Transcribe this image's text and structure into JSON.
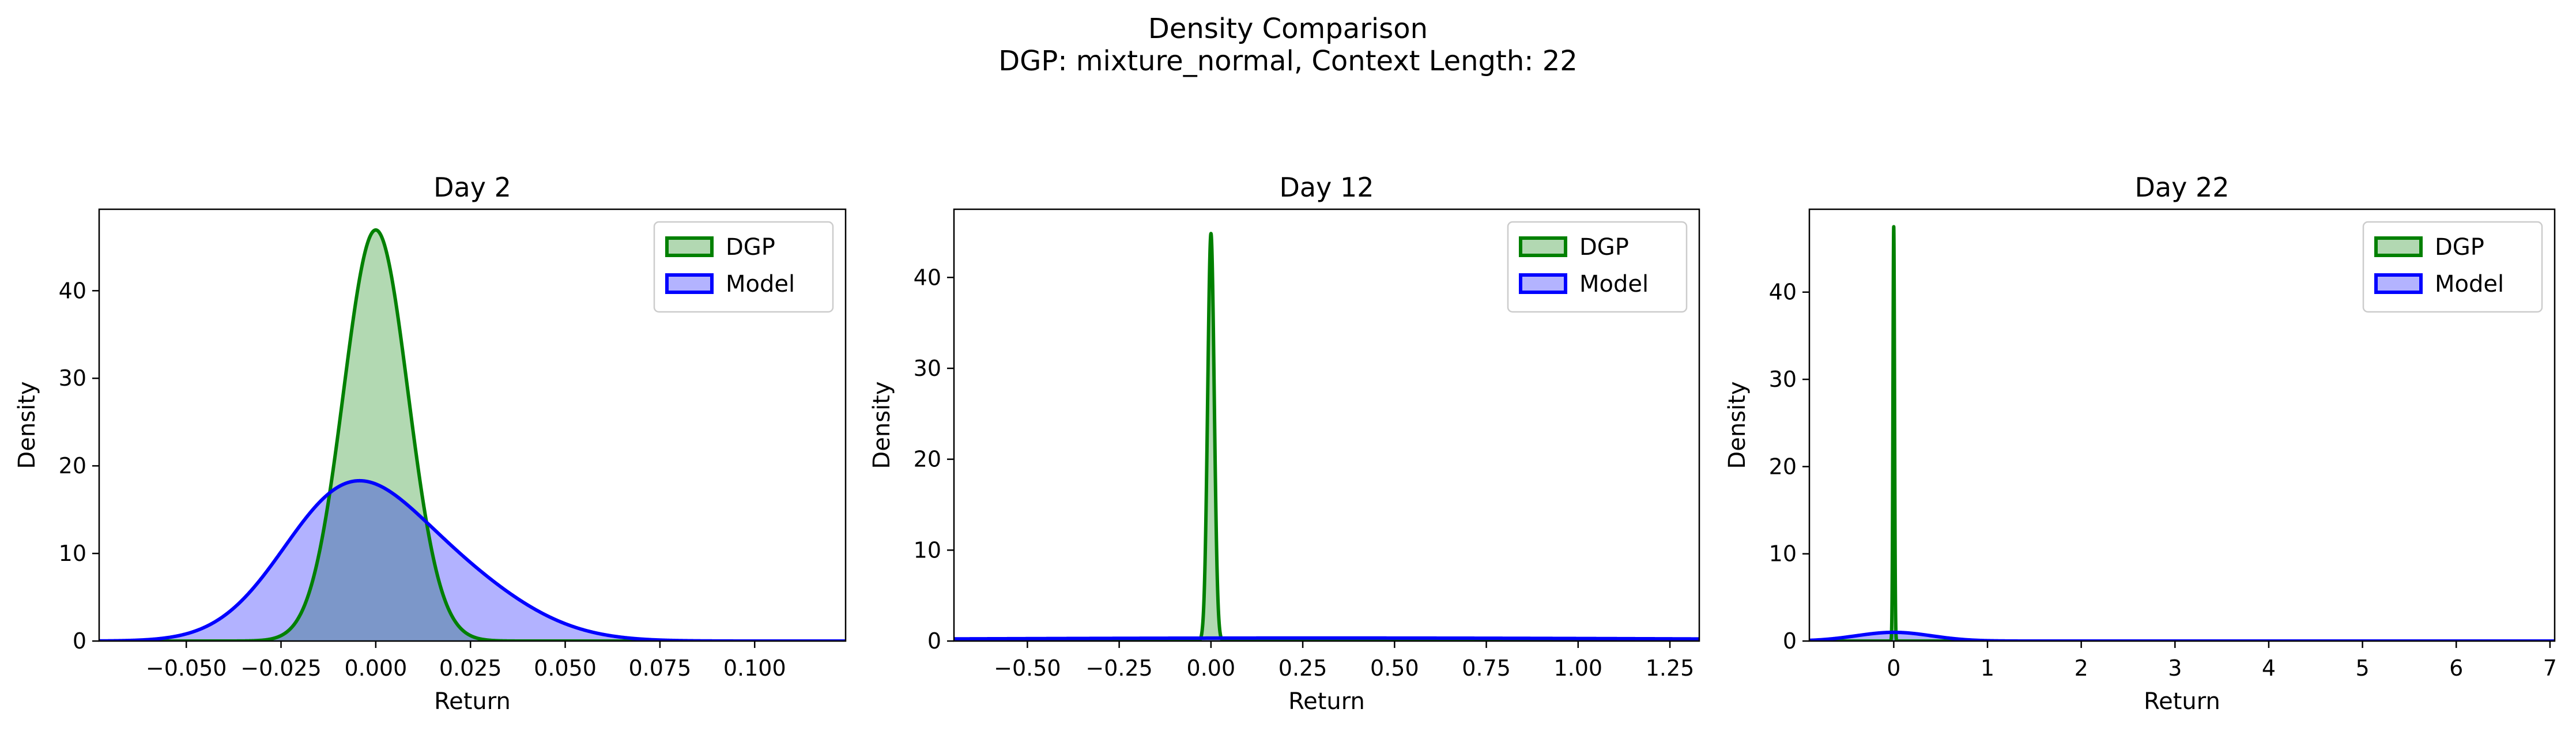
{
  "figure": {
    "title_line1": "Density Comparison",
    "title_line2": "DGP: mixture_normal, Context Length: 22"
  },
  "colors": {
    "dgp_line": "#008000",
    "dgp_fill": "#b2d8b2",
    "model_line": "#0000ff",
    "model_fill": "#b3b3ff",
    "overlap_fill": "#7b96c0"
  },
  "chart_data": [
    {
      "type": "area",
      "title": "Day 2",
      "xlabel": "Return",
      "ylabel": "Density",
      "xlim": [
        -0.073,
        0.124
      ],
      "ylim": [
        0,
        49.3
      ],
      "xticks": [
        -0.05,
        -0.025,
        0.0,
        0.025,
        0.05,
        0.075,
        0.1
      ],
      "xtick_labels": [
        "−0.050",
        "−0.025",
        "0.000",
        "0.025",
        "0.050",
        "0.075",
        "0.100"
      ],
      "yticks": [
        0,
        10,
        20,
        30,
        40
      ],
      "ytick_labels": [
        "0",
        "10",
        "20",
        "30",
        "40"
      ],
      "legend": {
        "position": "upper right",
        "entries": [
          "DGP",
          "Model"
        ]
      },
      "series": [
        {
          "name": "DGP",
          "kind": "gaussian_mixture",
          "components": [
            {
              "mean": 0.0,
              "sd": 0.0085,
              "weight": 1.0
            }
          ]
        },
        {
          "name": "Model",
          "kind": "gaussian_mixture",
          "components": [
            {
              "mean": -0.009,
              "sd": 0.017,
              "weight": 0.62
            },
            {
              "mean": 0.017,
              "sd": 0.02,
              "weight": 0.38
            }
          ]
        }
      ]
    },
    {
      "type": "area",
      "title": "Day 12",
      "xlabel": "Return",
      "ylabel": "Density",
      "xlim": [
        -0.7,
        1.33
      ],
      "ylim": [
        0,
        47.5
      ],
      "xticks": [
        -0.5,
        -0.25,
        0.0,
        0.25,
        0.5,
        0.75,
        1.0,
        1.25
      ],
      "xtick_labels": [
        "−0.50",
        "−0.25",
        "0.00",
        "0.25",
        "0.50",
        "0.75",
        "1.00",
        "1.25"
      ],
      "yticks": [
        0,
        10,
        20,
        30,
        40
      ],
      "ytick_labels": [
        "0",
        "10",
        "20",
        "30",
        "40"
      ],
      "legend": {
        "position": "upper right",
        "entries": [
          "DGP",
          "Model"
        ]
      },
      "series": [
        {
          "name": "DGP",
          "kind": "gaussian_mixture",
          "components": [
            {
              "mean": 0.0,
              "sd": 0.0089,
              "weight": 1.0
            }
          ]
        },
        {
          "name": "Model",
          "kind": "gaussian_mixture",
          "components": [
            {
              "mean": 0.3,
              "sd": 1.2,
              "weight": 1.0
            }
          ]
        }
      ]
    },
    {
      "type": "area",
      "title": "Day 22",
      "xlabel": "Return",
      "ylabel": "Density",
      "xlim": [
        -0.9,
        7.05
      ],
      "ylim": [
        0,
        49.5
      ],
      "xticks": [
        0,
        1,
        2,
        3,
        4,
        5,
        6,
        7
      ],
      "xtick_labels": [
        "0",
        "1",
        "2",
        "3",
        "4",
        "5",
        "6",
        "7"
      ],
      "yticks": [
        0,
        10,
        20,
        30,
        40
      ],
      "ytick_labels": [
        "0",
        "10",
        "20",
        "30",
        "40"
      ],
      "legend": {
        "position": "upper right",
        "entries": [
          "DGP",
          "Model"
        ]
      },
      "series": [
        {
          "name": "DGP",
          "kind": "gaussian_mixture",
          "components": [
            {
              "mean": 0.0,
              "sd": 0.0084,
              "weight": 1.0
            }
          ]
        },
        {
          "name": "Model",
          "kind": "gaussian_mixture",
          "components": [
            {
              "mean": 0.0,
              "sd": 0.4,
              "weight": 1.0
            }
          ]
        }
      ]
    }
  ]
}
